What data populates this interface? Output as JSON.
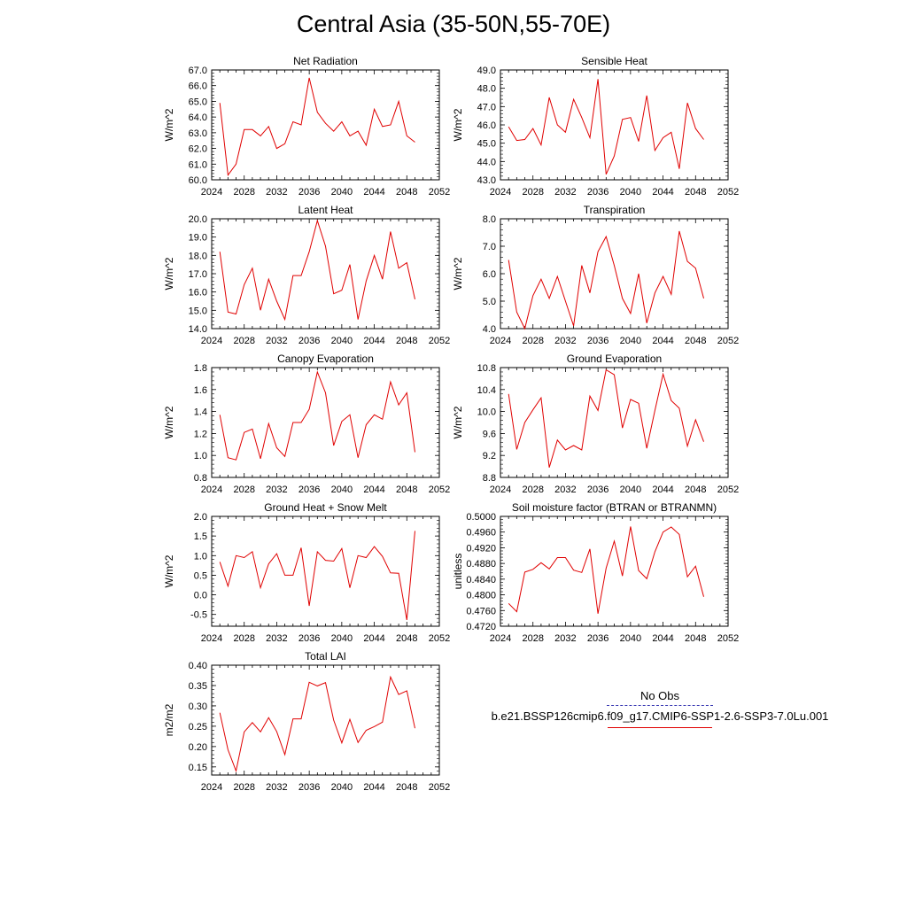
{
  "page_title": "Central Asia (35-50N,55-70E)",
  "legend": {
    "obs_label": "No Obs",
    "obs_color": "#3b3bb3",
    "case_label": "b.e21.BSSP126cmip6.f09_g17.CMIP6-SSP1-2.6-SSP3-7.0Lu.001",
    "case_color": "#e00000"
  },
  "chart_data": [
    {
      "type": "line",
      "title": "Net Radiation",
      "ylabel": "W/m^2",
      "xlim": [
        2024,
        2052
      ],
      "xticks": [
        "2024",
        "2028",
        "2032",
        "2036",
        "2040",
        "2044",
        "2048",
        "2052"
      ],
      "ylim": [
        60,
        67
      ],
      "yticks": [
        "60.0",
        "61.0",
        "62.0",
        "63.0",
        "64.0",
        "65.0",
        "66.0",
        "67.0"
      ],
      "series": [
        {
          "color": "#e00000",
          "x": [
            2025,
            2026,
            2027,
            2028,
            2029,
            2030,
            2031,
            2032,
            2033,
            2034,
            2035,
            2036,
            2037,
            2038,
            2039,
            2040,
            2041,
            2042,
            2043,
            2044,
            2045,
            2046,
            2047,
            2048,
            2049
          ],
          "y": [
            64.9,
            60.3,
            61.0,
            63.2,
            63.2,
            62.8,
            63.4,
            62.0,
            62.3,
            63.7,
            63.5,
            66.5,
            64.3,
            63.6,
            63.1,
            63.7,
            62.8,
            63.1,
            62.2,
            64.5,
            63.4,
            63.5,
            65.0,
            62.8,
            62.4
          ]
        }
      ]
    },
    {
      "type": "line",
      "title": "Sensible Heat",
      "ylabel": "W/m^2",
      "xlim": [
        2024,
        2052
      ],
      "xticks": [
        "2024",
        "2028",
        "2032",
        "2036",
        "2040",
        "2044",
        "2048",
        "2052"
      ],
      "ylim": [
        43,
        49
      ],
      "yticks": [
        "43.0",
        "44.0",
        "45.0",
        "46.0",
        "47.0",
        "48.0",
        "49.0"
      ],
      "series": [
        {
          "color": "#e00000",
          "x": [
            2025,
            2026,
            2027,
            2028,
            2029,
            2030,
            2031,
            2032,
            2033,
            2034,
            2035,
            2036,
            2037,
            2038,
            2039,
            2040,
            2041,
            2042,
            2043,
            2044,
            2045,
            2046,
            2047,
            2048,
            2049
          ],
          "y": [
            45.9,
            45.15,
            45.2,
            45.8,
            44.9,
            47.5,
            46.0,
            45.6,
            47.4,
            46.4,
            45.3,
            48.5,
            43.3,
            44.3,
            46.3,
            46.4,
            45.1,
            47.6,
            44.6,
            45.3,
            45.6,
            43.6,
            47.2,
            45.8,
            45.2
          ]
        }
      ]
    },
    {
      "type": "line",
      "title": "Latent Heat",
      "ylabel": "W/m^2",
      "xlim": [
        2024,
        2052
      ],
      "xticks": [
        "2024",
        "2028",
        "2032",
        "2036",
        "2040",
        "2044",
        "2048",
        "2052"
      ],
      "ylim": [
        14,
        20
      ],
      "yticks": [
        "14.0",
        "15.0",
        "16.0",
        "17.0",
        "18.0",
        "19.0",
        "20.0"
      ],
      "series": [
        {
          "color": "#e00000",
          "x": [
            2025,
            2026,
            2027,
            2028,
            2029,
            2030,
            2031,
            2032,
            2033,
            2034,
            2035,
            2036,
            2037,
            2038,
            2039,
            2040,
            2041,
            2042,
            2043,
            2044,
            2045,
            2046,
            2047,
            2048,
            2049
          ],
          "y": [
            18.2,
            14.9,
            14.8,
            16.4,
            17.3,
            15.0,
            16.7,
            15.5,
            14.5,
            16.9,
            16.9,
            18.2,
            19.9,
            18.5,
            15.9,
            16.1,
            17.5,
            14.5,
            16.6,
            18.0,
            16.7,
            19.3,
            17.3,
            17.6,
            15.6
          ]
        }
      ]
    },
    {
      "type": "line",
      "title": "Transpiration",
      "ylabel": "W/m^2",
      "xlim": [
        2024,
        2052
      ],
      "xticks": [
        "2024",
        "2028",
        "2032",
        "2036",
        "2040",
        "2044",
        "2048",
        "2052"
      ],
      "ylim": [
        4,
        8
      ],
      "yticks": [
        "4.0",
        "5.0",
        "6.0",
        "7.0",
        "8.0"
      ],
      "series": [
        {
          "color": "#e00000",
          "x": [
            2025,
            2026,
            2027,
            2028,
            2029,
            2030,
            2031,
            2032,
            2033,
            2034,
            2035,
            2036,
            2037,
            2038,
            2039,
            2040,
            2041,
            2042,
            2043,
            2044,
            2045,
            2046,
            2047,
            2048,
            2049
          ],
          "y": [
            6.5,
            4.6,
            4.0,
            5.2,
            5.8,
            5.1,
            5.9,
            5.0,
            4.1,
            6.3,
            5.3,
            6.8,
            7.35,
            6.3,
            5.1,
            4.55,
            6.0,
            4.2,
            5.3,
            5.9,
            5.25,
            7.55,
            6.45,
            6.2,
            5.1
          ]
        }
      ]
    },
    {
      "type": "line",
      "title": "Canopy Evaporation",
      "ylabel": "W/m^2",
      "xlim": [
        2024,
        2052
      ],
      "xticks": [
        "2024",
        "2028",
        "2032",
        "2036",
        "2040",
        "2044",
        "2048",
        "2052"
      ],
      "ylim": [
        0.8,
        1.8
      ],
      "yticks": [
        "0.8",
        "1.0",
        "1.2",
        "1.4",
        "1.6",
        "1.8"
      ],
      "series": [
        {
          "color": "#e00000",
          "x": [
            2025,
            2026,
            2027,
            2028,
            2029,
            2030,
            2031,
            2032,
            2033,
            2034,
            2035,
            2036,
            2037,
            2038,
            2039,
            2040,
            2041,
            2042,
            2043,
            2044,
            2045,
            2046,
            2047,
            2048,
            2049
          ],
          "y": [
            1.37,
            0.98,
            0.96,
            1.21,
            1.24,
            0.97,
            1.29,
            1.07,
            0.99,
            1.3,
            1.3,
            1.42,
            1.76,
            1.57,
            1.09,
            1.31,
            1.37,
            0.98,
            1.28,
            1.37,
            1.33,
            1.67,
            1.46,
            1.57,
            1.03
          ]
        }
      ]
    },
    {
      "type": "line",
      "title": "Ground Evaporation",
      "ylabel": "W/m^2",
      "xlim": [
        2024,
        2052
      ],
      "xticks": [
        "2024",
        "2028",
        "2032",
        "2036",
        "2040",
        "2044",
        "2048",
        "2052"
      ],
      "ylim": [
        8.8,
        10.8
      ],
      "yticks": [
        "8.8",
        "9.2",
        "9.6",
        "10.0",
        "10.4",
        "10.8"
      ],
      "series": [
        {
          "color": "#e00000",
          "x": [
            2025,
            2026,
            2027,
            2028,
            2029,
            2030,
            2031,
            2032,
            2033,
            2034,
            2035,
            2036,
            2037,
            2038,
            2039,
            2040,
            2041,
            2042,
            2043,
            2044,
            2045,
            2046,
            2047,
            2048,
            2049
          ],
          "y": [
            10.32,
            9.31,
            9.8,
            10.03,
            10.25,
            8.98,
            9.48,
            9.3,
            9.38,
            9.3,
            10.28,
            10.02,
            10.76,
            10.67,
            9.7,
            10.22,
            10.15,
            9.33,
            10.02,
            10.68,
            10.2,
            10.06,
            9.37,
            9.85,
            9.45
          ]
        }
      ]
    },
    {
      "type": "line",
      "title": "Ground Heat + Snow Melt",
      "ylabel": "W/m^2",
      "xlim": [
        2024,
        2052
      ],
      "xticks": [
        "2024",
        "2028",
        "2032",
        "2036",
        "2040",
        "2044",
        "2048",
        "2052"
      ],
      "ylim": [
        -0.8,
        2.0
      ],
      "yticks": [
        "-0.5",
        "0.0",
        "0.5",
        "1.0",
        "1.5",
        "2.0"
      ],
      "series": [
        {
          "color": "#e00000",
          "x": [
            2025,
            2026,
            2027,
            2028,
            2029,
            2030,
            2031,
            2032,
            2033,
            2034,
            2035,
            2036,
            2037,
            2038,
            2039,
            2040,
            2041,
            2042,
            2043,
            2044,
            2045,
            2046,
            2047,
            2048,
            2049
          ],
          "y": [
            0.84,
            0.22,
            1.0,
            0.95,
            1.1,
            0.18,
            0.79,
            1.05,
            0.5,
            0.5,
            1.2,
            -0.28,
            1.1,
            0.88,
            0.86,
            1.18,
            0.18,
            1.0,
            0.95,
            1.23,
            0.98,
            0.56,
            0.55,
            -0.64,
            1.63
          ]
        }
      ]
    },
    {
      "type": "line",
      "title": "Soil moisture factor (BTRAN or BTRANMN)",
      "ylabel": "unitless",
      "xlim": [
        2024,
        2052
      ],
      "xticks": [
        "2024",
        "2028",
        "2032",
        "2036",
        "2040",
        "2044",
        "2048",
        "2052"
      ],
      "ylim": [
        0.472,
        0.5
      ],
      "yticks": [
        "0.4720",
        "0.4760",
        "0.4800",
        "0.4840",
        "0.4880",
        "0.4920",
        "0.4960",
        "0.5000"
      ],
      "series": [
        {
          "color": "#e00000",
          "x": [
            2025,
            2026,
            2027,
            2028,
            2029,
            2030,
            2031,
            2032,
            2033,
            2034,
            2035,
            2036,
            2037,
            2038,
            2039,
            2040,
            2041,
            2042,
            2043,
            2044,
            2045,
            2046,
            2047,
            2048,
            2049
          ],
          "y": [
            0.4778,
            0.4757,
            0.4858,
            0.4865,
            0.4882,
            0.4866,
            0.4895,
            0.4895,
            0.4863,
            0.4857,
            0.4917,
            0.4752,
            0.4868,
            0.4937,
            0.4848,
            0.4974,
            0.4862,
            0.4841,
            0.491,
            0.496,
            0.4973,
            0.4954,
            0.4846,
            0.4873,
            0.4795
          ]
        }
      ]
    },
    {
      "type": "line",
      "title": "Total LAI",
      "ylabel": "m2/m2",
      "xlim": [
        2024,
        2052
      ],
      "xticks": [
        "2024",
        "2028",
        "2032",
        "2036",
        "2040",
        "2044",
        "2048",
        "2052"
      ],
      "ylim": [
        0.13,
        0.4
      ],
      "yticks": [
        "0.15",
        "0.20",
        "0.25",
        "0.30",
        "0.35",
        "0.40"
      ],
      "series": [
        {
          "color": "#e00000",
          "x": [
            2025,
            2026,
            2027,
            2028,
            2029,
            2030,
            2031,
            2032,
            2033,
            2034,
            2035,
            2036,
            2037,
            2038,
            2039,
            2040,
            2041,
            2042,
            2043,
            2044,
            2045,
            2046,
            2047,
            2048,
            2049
          ],
          "y": [
            0.283,
            0.192,
            0.14,
            0.236,
            0.259,
            0.236,
            0.271,
            0.237,
            0.18,
            0.268,
            0.268,
            0.358,
            0.349,
            0.357,
            0.265,
            0.209,
            0.267,
            0.21,
            0.24,
            0.249,
            0.26,
            0.371,
            0.328,
            0.337,
            0.245
          ]
        }
      ]
    }
  ]
}
